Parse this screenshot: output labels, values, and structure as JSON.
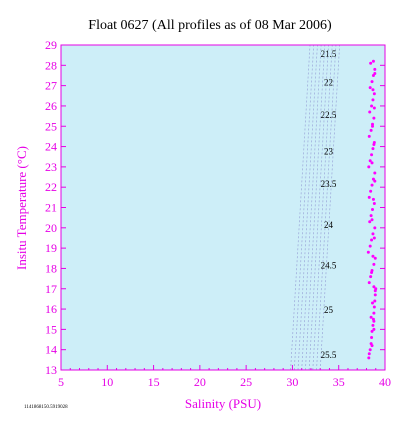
{
  "chart_data": {
    "type": "scatter",
    "title": "Float 0627  (All profiles as of 08 Mar 2006)",
    "xlabel": "Salinity (PSU)",
    "ylabel": "Insitu Temperature (°C)",
    "xlim": [
      5,
      40
    ],
    "ylim": [
      13,
      29
    ],
    "xticks": [
      5,
      10,
      15,
      20,
      25,
      30,
      35,
      40
    ],
    "yticks": [
      13,
      14,
      15,
      16,
      17,
      18,
      19,
      20,
      21,
      22,
      23,
      24,
      25,
      26,
      27,
      28,
      29
    ],
    "grid": false,
    "plot_background": "#cdeef8",
    "axis_color": "#e600e6",
    "point_color": "#ff00ff",
    "density_line_color": "#9aa6d8",
    "density_contours": [
      {
        "label": "21.5",
        "x": [
          33.0,
          35.1
        ],
        "y": [
          13.0,
          29.0
        ],
        "label_at": [
          33.9,
          28.4
        ]
      },
      {
        "label": "22",
        "x": [
          32.6,
          34.7
        ],
        "y": [
          13.0,
          29.0
        ],
        "label_at": [
          33.9,
          27.0
        ]
      },
      {
        "label": "22.5",
        "x": [
          32.2,
          34.3
        ],
        "y": [
          13.0,
          29.0
        ],
        "label_at": [
          33.9,
          25.4
        ]
      },
      {
        "label": "23",
        "x": [
          31.8,
          33.9
        ],
        "y": [
          13.0,
          29.0
        ],
        "label_at": [
          33.9,
          23.6
        ]
      },
      {
        "label": "23.5",
        "x": [
          31.4,
          33.5
        ],
        "y": [
          13.0,
          29.0
        ],
        "label_at": [
          33.9,
          22.0
        ]
      },
      {
        "label": "24",
        "x": [
          31.0,
          33.1
        ],
        "y": [
          13.0,
          29.0
        ],
        "label_at": [
          33.9,
          20.0
        ]
      },
      {
        "label": "24.5",
        "x": [
          30.6,
          32.7
        ],
        "y": [
          13.0,
          29.0
        ],
        "label_at": [
          33.9,
          18.0
        ]
      },
      {
        "label": "25",
        "x": [
          30.2,
          32.3
        ],
        "y": [
          13.0,
          29.0
        ],
        "label_at": [
          33.9,
          15.8
        ]
      },
      {
        "label": "25.5",
        "x": [
          29.8,
          31.9
        ],
        "y": [
          13.0,
          29.0
        ],
        "label_at": [
          33.9,
          13.6
        ]
      }
    ],
    "series": [
      {
        "x": [
          38.25,
          38.3,
          38.4,
          38.5,
          38.55,
          38.6,
          38.7,
          38.75,
          38.8,
          38.85,
          38.9,
          38.95,
          39.0,
          38.3,
          38.45,
          38.6,
          38.8,
          38.95,
          38.2,
          38.4,
          38.55,
          38.7,
          38.9,
          38.35,
          38.5,
          38.65,
          38.85,
          38.3,
          38.45,
          38.6,
          38.75,
          38.9,
          38.25,
          38.4,
          38.55,
          38.7,
          38.85,
          38.3,
          38.5,
          38.65,
          38.8,
          38.35,
          38.55,
          38.7,
          38.85,
          38.4,
          38.6,
          38.75,
          38.9,
          38.45,
          38.6,
          38.8,
          38.5,
          38.65,
          38.8,
          38.55,
          38.7,
          38.85,
          38.6,
          38.75,
          38.9,
          38.6,
          38.8,
          38.65,
          38.85,
          38.7,
          38.9,
          38.75,
          38.95,
          38.8
        ],
        "y": [
          13.6,
          13.8,
          14.0,
          14.3,
          14.6,
          14.9,
          15.2,
          15.5,
          15.8,
          16.1,
          16.4,
          16.7,
          17.0,
          17.3,
          17.6,
          17.9,
          18.2,
          18.5,
          18.8,
          19.1,
          19.4,
          19.7,
          20.0,
          20.3,
          20.6,
          20.9,
          21.2,
          21.5,
          21.8,
          22.1,
          22.4,
          22.7,
          23.0,
          23.3,
          23.6,
          23.9,
          24.2,
          24.5,
          24.8,
          25.1,
          25.4,
          25.7,
          26.0,
          26.3,
          26.6,
          26.9,
          27.2,
          27.5,
          27.8,
          28.1,
          14.2,
          15.0,
          15.6,
          16.3,
          17.1,
          17.8,
          18.6,
          19.5,
          20.4,
          21.4,
          22.3,
          23.2,
          24.1,
          25.0,
          25.9,
          26.8,
          27.6,
          28.2,
          16.9,
          15.4
        ]
      }
    ]
  },
  "footnote": "1141868150.5919028"
}
